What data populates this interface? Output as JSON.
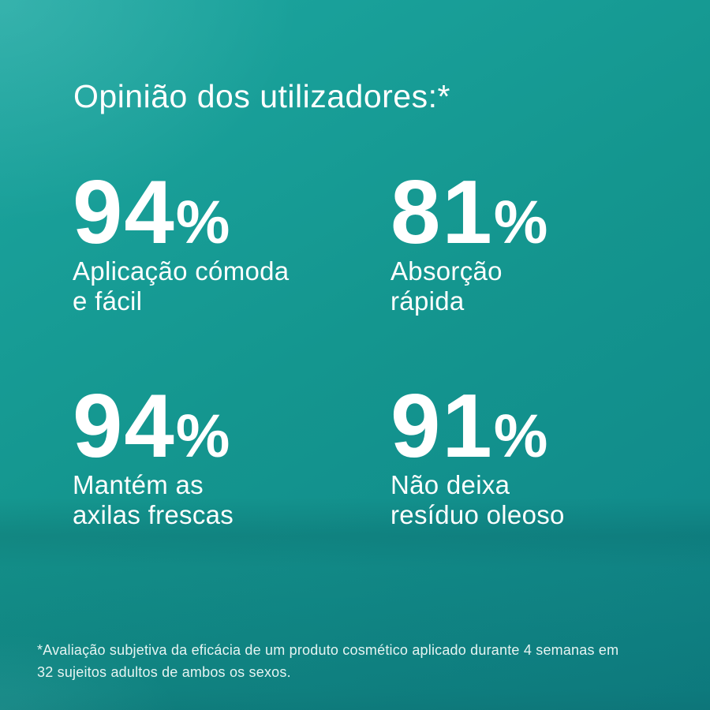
{
  "header": {
    "title": "Opinião dos utilizadores:*"
  },
  "stats": [
    {
      "value": "94",
      "unit": "%",
      "label_line1": "Aplicação cómoda",
      "label_line2": "e fácil"
    },
    {
      "value": "81",
      "unit": "%",
      "label_line1": "Absorção",
      "label_line2": "rápida"
    },
    {
      "value": "94",
      "unit": "%",
      "label_line1": "Mantém as",
      "label_line2": "axilas frescas"
    },
    {
      "value": "91",
      "unit": "%",
      "label_line1": "Não deixa",
      "label_line2": "resíduo oleoso"
    }
  ],
  "footnote": {
    "line1": "*Avaliação subjetiva da eficácia de um produto cosmético aplicado durante 4 semanas em",
    "line2": "32 sujeitos adultos de ambos os sexos."
  },
  "colors": {
    "background_top_left": "#1CA6A0",
    "background_mid": "#14968F",
    "background_bottom": "#0E8285",
    "horizon_shade_overlay": "rgba(0,30,38,0.13)",
    "text": "#FFFFFF",
    "footnote_text": "#E6F4F2"
  }
}
